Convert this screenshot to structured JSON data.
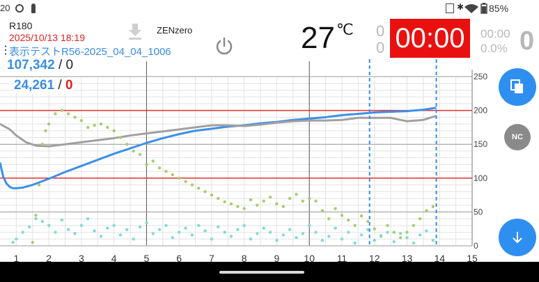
{
  "status_bar": {
    "time": "20",
    "battery": "85%",
    "colors": {
      "text": "#333333"
    }
  },
  "header": {
    "device": "R180",
    "datetime": "2025/10/13 18:19",
    "test_name": "表示テストR56-2025_04_04_1006",
    "mode": "ZENzero",
    "temperature": "27",
    "temperature_unit": "℃",
    "counter_top": "0",
    "counter_bottom": "0",
    "timer": "00:00",
    "sub_time": "00:00",
    "percent": "0.0%",
    "big_count": "0",
    "colors": {
      "accent_blue": "#3a8ee6",
      "timer_bg": "#e8110f",
      "red": "#e02020"
    }
  },
  "counts": {
    "row1_value": "107,342",
    "row1_sep": "/",
    "row1_extra": "0",
    "row2_value": "24,261",
    "row2_sep": "/",
    "row2_extra": "0"
  },
  "buttons": {
    "copy_icon": "copy-icon",
    "nc_label": "NC",
    "scroll_down_icon": "arrow-down-icon",
    "power_icon": "power-icon",
    "download_icon": "download-icon"
  },
  "chart_data": {
    "type": "line",
    "xlim": [
      0.5,
      15
    ],
    "ylim": [
      0,
      250
    ],
    "x_ticks": [
      1,
      2,
      3,
      4,
      5,
      6,
      7,
      8,
      9,
      10,
      11,
      12,
      13,
      14,
      15
    ],
    "y_ticks": [
      0,
      50,
      100,
      150,
      200,
      250
    ],
    "grid": true,
    "reference_lines_y": [
      100,
      200
    ],
    "vertical_markers_x": [
      11.85,
      13.9
    ],
    "series": [
      {
        "color": "#3d8fe8",
        "x": [
          0.5,
          0.6,
          0.7,
          0.8,
          0.9,
          1.0,
          1.2,
          1.5,
          2.0,
          2.5,
          3.0,
          3.5,
          4.0,
          4.5,
          5.0,
          5.5,
          6.0,
          6.5,
          7.0,
          7.5,
          8.0,
          8.5,
          9.0,
          9.5,
          10.0,
          10.5,
          11.0,
          11.5,
          12.0,
          12.5,
          13.0,
          13.5,
          13.9
        ],
        "y": [
          123,
          102,
          92,
          87,
          85,
          85,
          86,
          90,
          99,
          109,
          118,
          127,
          136,
          144,
          152,
          159,
          165,
          170,
          173,
          176,
          178,
          181,
          183,
          186,
          188,
          190,
          193,
          195,
          197,
          198,
          199,
          201,
          204
        ]
      },
      {
        "color": "#a0a0a0",
        "x": [
          0.5,
          0.8,
          1.0,
          1.3,
          1.6,
          2.0,
          2.5,
          3.0,
          3.5,
          4.0,
          4.5,
          5.0,
          5.5,
          6.0,
          6.5,
          7.0,
          7.5,
          8.0,
          8.5,
          9.0,
          9.5,
          10.0,
          10.5,
          11.0,
          11.5,
          12.0,
          12.5,
          13.0,
          13.5,
          13.9
        ],
        "y": [
          180,
          172,
          163,
          153,
          148,
          147,
          150,
          153,
          156,
          159,
          163,
          166,
          169,
          172,
          175,
          178,
          178,
          177,
          179,
          182,
          184,
          185,
          185,
          186,
          189,
          189,
          189,
          184,
          186,
          192
        ]
      },
      {
        "color": "#a8cc70",
        "type": "scatter",
        "x": [
          1.5,
          1.6,
          1.7,
          1.8,
          1.9,
          2.0,
          2.2,
          2.4,
          2.6,
          2.8,
          3.0,
          3.2,
          3.4,
          3.6,
          3.8,
          4.0,
          4.2,
          4.4,
          4.6,
          4.8,
          5.0,
          5.2,
          5.4,
          5.6,
          5.8,
          6.0,
          6.2,
          6.4,
          6.6,
          6.8,
          7.0,
          7.2,
          7.4,
          7.6,
          7.8,
          8.0,
          8.2,
          8.4,
          8.6,
          8.8,
          9.0,
          9.2,
          9.4,
          9.6,
          9.8,
          10.0,
          10.2,
          10.4,
          10.6,
          10.8,
          11.0,
          11.2,
          11.4,
          11.6,
          11.8,
          12.0,
          12.2,
          12.4,
          12.6,
          12.8,
          13.0,
          13.2,
          13.4,
          13.6,
          13.8
        ],
        "y": [
          5,
          45,
          90,
          150,
          170,
          180,
          195,
          200,
          195,
          190,
          185,
          175,
          178,
          180,
          175,
          170,
          160,
          150,
          140,
          135,
          120,
          125,
          115,
          110,
          105,
          100,
          95,
          90,
          85,
          80,
          75,
          70,
          65,
          62,
          58,
          55,
          68,
          60,
          66,
          72,
          62,
          58,
          70,
          76,
          66,
          70,
          66,
          52,
          40,
          55,
          45,
          38,
          30,
          44,
          36,
          25,
          15,
          30,
          20,
          12,
          20,
          30,
          40,
          52,
          58
        ]
      },
      {
        "color": "#7fdcd3",
        "type": "scatter",
        "x": [
          0.9,
          1.0,
          1.2,
          1.4,
          1.6,
          1.8,
          2.0,
          2.2,
          2.4,
          2.6,
          2.8,
          3.0,
          3.2,
          3.4,
          3.6,
          3.8,
          4.0,
          4.2,
          4.4,
          4.6,
          4.8,
          5.0,
          5.2,
          5.4,
          5.6,
          5.8,
          6.0,
          6.2,
          6.4,
          6.6,
          6.8,
          7.0,
          7.2,
          7.4,
          7.6,
          7.8,
          8.0,
          8.2,
          8.4,
          8.6,
          8.8,
          9.0,
          9.2,
          9.4,
          9.6,
          9.8,
          10.0,
          10.2,
          10.4,
          10.6,
          10.8,
          11.0,
          11.2,
          11.4,
          11.6,
          11.8,
          12.0,
          12.2,
          12.4,
          12.6,
          12.8,
          13.0,
          13.2,
          13.4,
          13.6,
          13.8
        ],
        "y": [
          5,
          10,
          20,
          28,
          40,
          36,
          30,
          20,
          38,
          24,
          18,
          30,
          40,
          22,
          14,
          26,
          30,
          16,
          24,
          10,
          28,
          34,
          18,
          24,
          30,
          12,
          20,
          26,
          16,
          30,
          22,
          10,
          28,
          20,
          14,
          24,
          30,
          10,
          18,
          26,
          20,
          8,
          16,
          24,
          12,
          18,
          30,
          20,
          8,
          14,
          26,
          10,
          20,
          4,
          16,
          24,
          8,
          14,
          20,
          6,
          18,
          12,
          4,
          16,
          22,
          8
        ]
      }
    ]
  }
}
